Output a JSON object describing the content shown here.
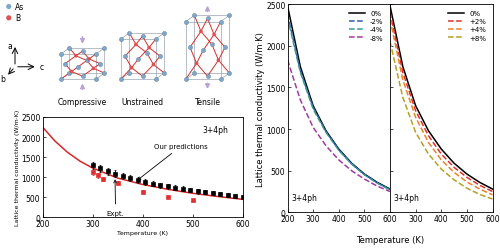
{
  "diagram": {
    "legend": [
      {
        "label": "As",
        "color": "#7fa7c9"
      },
      {
        "label": "B",
        "color": "#e05050"
      }
    ],
    "axes_labels": [
      "a",
      "b",
      "c"
    ],
    "cells": [
      "Compressive",
      "Unstrained",
      "Tensile"
    ]
  },
  "chart_data": [
    {
      "type": "line",
      "xlabel": "Temperature (K)",
      "ylabel": "Lattice thermal conductivity (W/m·K)",
      "xlim": [
        200,
        600
      ],
      "xticks": [
        200,
        300,
        400,
        500,
        600
      ],
      "ylim": [
        0,
        2500
      ],
      "yticks": [
        0,
        500,
        1000,
        1500,
        2000,
        2500
      ],
      "annotations": [
        {
          "text": "3+4ph",
          "x": 520,
          "y": 2200
        }
      ],
      "callouts": [
        {
          "text": "Our predictions",
          "x": 385,
          "y": 880
        },
        {
          "text": "Expt.",
          "x": 345,
          "y": 1020
        }
      ],
      "series": [
        {
          "type": "line",
          "color": "#d62728",
          "line_style": "solid",
          "x": [
            200,
            225,
            250,
            275,
            300,
            350,
            400,
            450,
            500,
            550,
            600
          ],
          "values": [
            2250,
            1900,
            1620,
            1400,
            1230,
            980,
            820,
            700,
            600,
            520,
            450
          ]
        },
        {
          "type": "scatter",
          "color": "#000000",
          "marker": "square",
          "x": [
            300,
            315,
            330,
            345,
            360,
            375,
            390,
            405,
            420,
            435,
            450,
            465,
            480,
            495,
            510,
            525,
            540,
            555,
            570,
            585,
            600
          ],
          "values": [
            1300,
            1220,
            1150,
            1090,
            1030,
            980,
            930,
            880,
            840,
            800,
            770,
            740,
            710,
            680,
            650,
            625,
            600,
            575,
            550,
            525,
            500
          ],
          "errors": [
            90,
            88,
            85,
            82,
            80,
            77,
            75,
            72,
            70,
            68,
            65,
            63,
            60,
            58,
            56,
            54,
            52,
            50,
            48,
            46,
            45
          ]
        },
        {
          "type": "scatter",
          "color": "#e03030",
          "marker": "square",
          "x": [
            300,
            310,
            320,
            350,
            400,
            450,
            500
          ],
          "values": [
            1120,
            1050,
            960,
            860,
            640,
            510,
            430
          ],
          "errors": [
            70,
            60,
            50,
            40,
            35,
            30,
            30
          ]
        }
      ]
    },
    {
      "type": "line",
      "xlabel": "Temperature (K)",
      "ylabel": "Lattice thermal conductivity (W/m·K)",
      "xlim": [
        200,
        600
      ],
      "xticks": [
        200,
        300,
        400,
        500,
        600
      ],
      "ylim": [
        0,
        2500
      ],
      "yticks": [
        0,
        500,
        1000,
        1500,
        2000,
        2500
      ],
      "legend": "upper right",
      "annotations": [
        {
          "text": "3+4ph",
          "x": 215,
          "y": 180
        }
      ],
      "x": [
        200,
        250,
        300,
        350,
        400,
        450,
        500,
        550,
        600
      ],
      "series": [
        {
          "name": "0%",
          "color": "#000000",
          "line_style": "solid",
          "values": [
            2480,
            1750,
            1280,
            980,
            760,
            590,
            460,
            360,
            280
          ]
        },
        {
          "name": "-2%",
          "color": "#2b5fb0",
          "line_style": "dashed",
          "values": [
            2380,
            1700,
            1260,
            970,
            750,
            585,
            455,
            355,
            275
          ]
        },
        {
          "name": "-4%",
          "color": "#3a9a9a",
          "line_style": "dashed",
          "values": [
            2340,
            1680,
            1240,
            960,
            745,
            580,
            450,
            350,
            270
          ]
        },
        {
          "name": "-8%",
          "color": "#a03aa0",
          "line_style": "dashed",
          "values": [
            1830,
            1350,
            1020,
            800,
            630,
            500,
            400,
            315,
            250
          ]
        }
      ]
    },
    {
      "type": "line",
      "tick_labels": "x",
      "xlim": [
        200,
        600
      ],
      "xticks": [
        300,
        400,
        500,
        600
      ],
      "ylim": [
        0,
        2500
      ],
      "yticks": [
        0,
        500,
        1000,
        1500,
        2000,
        2500
      ],
      "legend": "upper right",
      "annotations": [
        {
          "text": "3+4ph",
          "x": 215,
          "y": 180
        }
      ],
      "x": [
        200,
        250,
        300,
        350,
        400,
        450,
        500,
        550,
        600
      ],
      "series": [
        {
          "name": "0%",
          "color": "#000000",
          "line_style": "solid",
          "values": [
            2480,
            1750,
            1280,
            980,
            760,
            590,
            460,
            360,
            280
          ]
        },
        {
          "name": "+2%",
          "color": "#e03030",
          "line_style": "dashed",
          "values": [
            2400,
            1680,
            1220,
            920,
            700,
            540,
            420,
            325,
            250
          ]
        },
        {
          "name": "+4%",
          "color": "#e8832a",
          "line_style": "dashed",
          "values": [
            2320,
            1590,
            1140,
            840,
            630,
            480,
            365,
            280,
            210
          ]
        },
        {
          "name": "+8%",
          "color": "#b8a020",
          "line_style": "dashed",
          "values": [
            2050,
            1380,
            960,
            700,
            520,
            390,
            290,
            215,
            160
          ]
        }
      ]
    }
  ]
}
